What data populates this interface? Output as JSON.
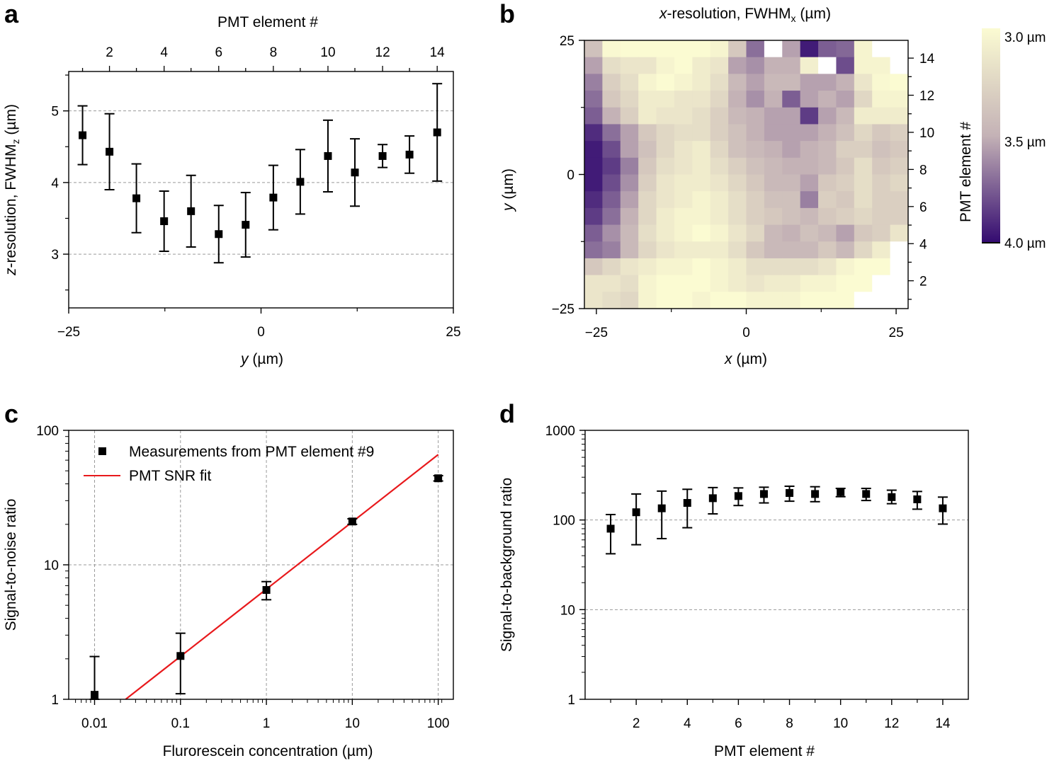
{
  "panels": {
    "a": "a",
    "b": "b",
    "c": "c",
    "d": "d"
  },
  "chart_data": [
    {
      "id": "a",
      "type": "scatter",
      "top_xlabel": "PMT element #",
      "top_ticks": [
        "2",
        "4",
        "6",
        "8",
        "10",
        "12",
        "14"
      ],
      "ylabel_italic": "z",
      "ylabel_rest": "-resolution, FWHM",
      "ylabel_sub": "z",
      "ylabel_unit": " (µm)",
      "xlabel_italic": "y",
      "xlabel_rest": " (µm)",
      "x_ticks": [
        "−25",
        "0",
        "25"
      ],
      "y_ticks": [
        "3",
        "4",
        "5"
      ],
      "xlim": [
        -25,
        25
      ],
      "ylim": [
        2.25,
        5.55
      ],
      "grid_y": [
        3,
        4,
        5
      ],
      "x": [
        -23.2,
        -19.7,
        -16.2,
        -12.6,
        -9.1,
        -5.5,
        -2.0,
        1.6,
        5.1,
        8.7,
        12.2,
        15.8,
        19.3,
        22.9
      ],
      "y": [
        4.66,
        4.43,
        3.78,
        3.46,
        3.6,
        3.28,
        3.41,
        3.79,
        4.01,
        4.37,
        4.14,
        4.37,
        4.39,
        4.7
      ],
      "err": [
        0.41,
        0.53,
        0.48,
        0.42,
        0.5,
        0.4,
        0.45,
        0.45,
        0.45,
        0.5,
        0.47,
        0.16,
        0.26,
        0.68
      ]
    },
    {
      "id": "b",
      "type": "heatmap",
      "title_italic": "x",
      "title_rest": "-resolution, FWHM",
      "title_sub": "x",
      "title_unit": " (µm)",
      "ylabel_italic": "y",
      "ylabel_rest": " (µm)",
      "xlabel_italic": "x",
      "xlabel_rest": " (µm)",
      "right_label": "PMT element #",
      "right_ticks": [
        "2",
        "4",
        "6",
        "8",
        "10",
        "12",
        "14"
      ],
      "x_ticks": [
        "−25",
        "0",
        "25"
      ],
      "y_ticks": [
        "25",
        "0",
        "−25"
      ],
      "xlim": [
        -27,
        27
      ],
      "ylim": [
        -25,
        25
      ],
      "colorbar_ticks": [
        "3.0 µm",
        "3.5 µm",
        "4.0 µm"
      ],
      "colorbar_range": [
        3.0,
        4.0
      ],
      "colors": {
        "low": "#fbfbd2",
        "mid": "#c4b2b6",
        "high": "#330a70",
        "missing": "#ffffff"
      },
      "grid_values": [
        [
          3.4,
          3.02,
          3.0,
          3.0,
          3.0,
          3.0,
          3.0,
          3.05,
          3.35,
          3.7,
          null,
          3.55,
          3.95,
          3.75,
          3.72,
          3.05,
          null,
          null
        ],
        [
          3.55,
          3.2,
          3.15,
          3.15,
          3.05,
          3.0,
          3.1,
          3.15,
          3.55,
          3.6,
          3.5,
          3.5,
          3.08,
          null,
          3.8,
          3.05,
          3.05,
          null
        ],
        [
          3.65,
          3.3,
          3.2,
          3.05,
          3.0,
          3.05,
          3.1,
          3.2,
          3.45,
          3.55,
          3.45,
          3.45,
          3.55,
          3.55,
          3.5,
          3.15,
          3.02,
          3.0
        ],
        [
          3.7,
          3.35,
          3.25,
          3.1,
          3.1,
          3.15,
          3.15,
          3.25,
          3.5,
          3.6,
          3.5,
          3.75,
          3.55,
          3.5,
          3.55,
          3.25,
          3.05,
          3.05
        ],
        [
          3.75,
          3.5,
          3.3,
          3.1,
          3.15,
          3.15,
          3.2,
          3.3,
          3.45,
          3.5,
          3.55,
          3.55,
          3.85,
          3.55,
          3.45,
          3.1,
          3.1,
          3.1
        ],
        [
          3.9,
          3.7,
          3.55,
          3.35,
          3.25,
          3.2,
          3.2,
          3.3,
          3.4,
          3.5,
          3.55,
          3.55,
          3.55,
          3.5,
          3.4,
          3.25,
          3.35,
          3.3
        ],
        [
          3.95,
          3.8,
          3.55,
          3.4,
          3.25,
          3.15,
          3.1,
          3.25,
          3.4,
          3.45,
          3.5,
          3.55,
          3.5,
          3.45,
          3.3,
          3.3,
          3.4,
          3.35
        ],
        [
          3.95,
          3.85,
          3.65,
          3.35,
          3.2,
          3.15,
          3.1,
          3.2,
          3.3,
          3.4,
          3.45,
          3.5,
          3.5,
          3.45,
          3.35,
          3.2,
          3.35,
          3.3
        ],
        [
          3.95,
          3.8,
          3.6,
          3.3,
          3.15,
          3.1,
          3.1,
          3.15,
          3.25,
          3.35,
          3.45,
          3.45,
          3.55,
          3.35,
          3.3,
          3.2,
          3.3,
          3.25
        ],
        [
          3.9,
          3.75,
          3.55,
          3.25,
          3.15,
          3.1,
          3.05,
          3.1,
          3.2,
          3.3,
          3.4,
          3.4,
          3.65,
          3.3,
          3.35,
          3.2,
          3.3,
          3.3
        ],
        [
          3.85,
          3.7,
          3.5,
          3.25,
          3.1,
          3.05,
          3.05,
          3.1,
          3.2,
          3.3,
          3.35,
          3.4,
          3.45,
          3.35,
          3.3,
          3.25,
          3.3,
          3.3
        ],
        [
          3.75,
          3.6,
          3.45,
          3.2,
          3.1,
          3.05,
          3.0,
          3.05,
          3.15,
          3.25,
          3.45,
          3.5,
          3.4,
          3.45,
          3.55,
          3.35,
          3.3,
          3.15
        ],
        [
          3.7,
          3.65,
          3.45,
          3.25,
          3.15,
          3.1,
          3.1,
          3.1,
          3.2,
          3.35,
          3.45,
          3.45,
          3.45,
          3.35,
          3.45,
          3.25,
          3.1,
          null
        ],
        [
          3.35,
          3.25,
          3.15,
          3.1,
          3.05,
          3.05,
          3.0,
          3.05,
          3.1,
          3.2,
          3.2,
          3.2,
          3.2,
          3.15,
          3.05,
          3.0,
          3.0,
          null
        ],
        [
          3.15,
          3.15,
          3.2,
          3.05,
          3.0,
          3.0,
          3.0,
          3.05,
          3.1,
          3.15,
          3.1,
          3.1,
          3.05,
          3.05,
          3.0,
          3.0,
          null,
          null
        ],
        [
          3.15,
          3.2,
          3.25,
          3.05,
          3.0,
          3.0,
          3.05,
          3.0,
          3.0,
          3.05,
          3.05,
          3.05,
          3.0,
          3.0,
          3.0,
          null,
          null,
          null
        ]
      ]
    },
    {
      "id": "c",
      "type": "scatter",
      "xscale": "log",
      "yscale": "log",
      "xlabel": "Flurorescein concentration (µm)",
      "ylabel": "Signal-to-noise ratio",
      "x_ticks": [
        "0.01",
        "0.1",
        "1",
        "10",
        "100"
      ],
      "y_ticks": [
        "1",
        "10",
        "100"
      ],
      "xlim": [
        0.005,
        150
      ],
      "ylim": [
        1,
        100
      ],
      "legend": [
        "Measurements from PMT element #9",
        "PMT SNR fit"
      ],
      "legend_position": "top-left",
      "line_color": "#e8191c",
      "x": [
        0.01,
        0.1,
        1,
        10,
        100
      ],
      "y": [
        1.08,
        2.1,
        6.5,
        21,
        44
      ],
      "err": [
        1.0,
        1.0,
        1.0,
        1.0,
        2.0
      ],
      "fit_x": [
        0.023,
        100
      ],
      "fit_y": [
        1.0,
        66
      ]
    },
    {
      "id": "d",
      "type": "scatter",
      "yscale": "log",
      "xlabel": "PMT element #",
      "ylabel": "Signal-to-background ratio",
      "x_ticks": [
        "2",
        "4",
        "6",
        "8",
        "10",
        "12",
        "14"
      ],
      "y_ticks": [
        "1",
        "10",
        "100",
        "1000"
      ],
      "xlim": [
        0,
        15
      ],
      "ylim": [
        1,
        1000
      ],
      "grid_y": [
        10,
        100
      ],
      "x": [
        1,
        2,
        3,
        4,
        5,
        6,
        7,
        8,
        9,
        10,
        11,
        12,
        13,
        14
      ],
      "y": [
        80,
        122,
        135,
        155,
        175,
        185,
        195,
        200,
        195,
        205,
        195,
        180,
        170,
        135
      ],
      "lo": [
        42,
        53,
        62,
        82,
        117,
        145,
        155,
        162,
        160,
        182,
        165,
        152,
        132,
        90
      ],
      "hi": [
        115,
        195,
        210,
        220,
        230,
        228,
        232,
        238,
        235,
        225,
        225,
        215,
        208,
        180
      ]
    }
  ]
}
